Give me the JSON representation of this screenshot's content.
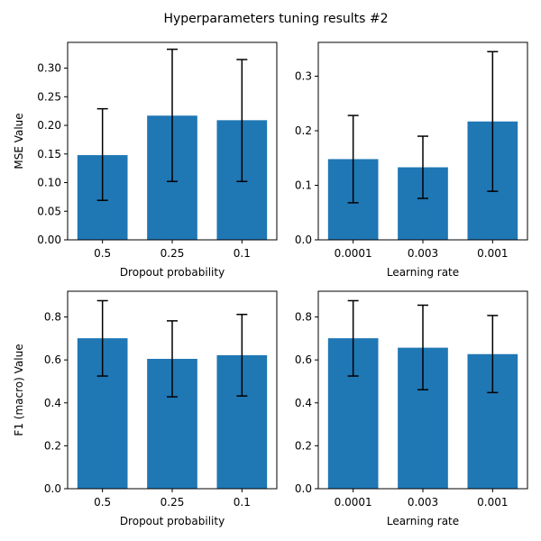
{
  "title": "Hyperparameters tuning results #2",
  "colors": {
    "bar": "#1f77b4",
    "errorbar": "#000000",
    "axis": "#000000"
  },
  "chart_data": [
    {
      "type": "bar",
      "categories": [
        "0.5",
        "0.25",
        "0.1"
      ],
      "values": [
        0.148,
        0.217,
        0.209
      ],
      "error_low": [
        0.069,
        0.102,
        0.102
      ],
      "error_high": [
        0.229,
        0.333,
        0.315
      ],
      "xlabel": "Dropout probability",
      "ylabel": "MSE Value",
      "ylim": [
        0,
        0.345
      ],
      "yticks": [
        0.0,
        0.05,
        0.1,
        0.15,
        0.2,
        0.25,
        0.3
      ],
      "ytick_labels": [
        "0.00",
        "0.05",
        "0.10",
        "0.15",
        "0.20",
        "0.25",
        "0.30"
      ]
    },
    {
      "type": "bar",
      "categories": [
        "0.0001",
        "0.003",
        "0.001"
      ],
      "values": [
        0.148,
        0.133,
        0.217
      ],
      "error_low": [
        0.068,
        0.076,
        0.089
      ],
      "error_high": [
        0.228,
        0.19,
        0.345
      ],
      "xlabel": "Learning rate",
      "ylabel": "",
      "ylim": [
        0,
        0.362
      ],
      "yticks": [
        0.0,
        0.1,
        0.2,
        0.3
      ],
      "ytick_labels": [
        "0.0",
        "0.1",
        "0.2",
        "0.3"
      ]
    },
    {
      "type": "bar",
      "categories": [
        "0.5",
        "0.25",
        "0.1"
      ],
      "values": [
        0.701,
        0.605,
        0.622
      ],
      "error_low": [
        0.525,
        0.428,
        0.432
      ],
      "error_high": [
        0.876,
        0.782,
        0.812
      ],
      "xlabel": "Dropout probability",
      "ylabel": "F1 (macro) Value",
      "ylim": [
        0,
        0.92
      ],
      "yticks": [
        0.0,
        0.2,
        0.4,
        0.6,
        0.8
      ],
      "ytick_labels": [
        "0.0",
        "0.2",
        "0.4",
        "0.6",
        "0.8"
      ]
    },
    {
      "type": "bar",
      "categories": [
        "0.0001",
        "0.003",
        "0.001"
      ],
      "values": [
        0.701,
        0.657,
        0.627
      ],
      "error_low": [
        0.525,
        0.461,
        0.448
      ],
      "error_high": [
        0.876,
        0.855,
        0.807
      ],
      "xlabel": "Learning rate",
      "ylabel": "",
      "ylim": [
        0,
        0.92
      ],
      "yticks": [
        0.0,
        0.2,
        0.4,
        0.6,
        0.8
      ],
      "ytick_labels": [
        "0.0",
        "0.2",
        "0.4",
        "0.6",
        "0.8"
      ]
    }
  ]
}
